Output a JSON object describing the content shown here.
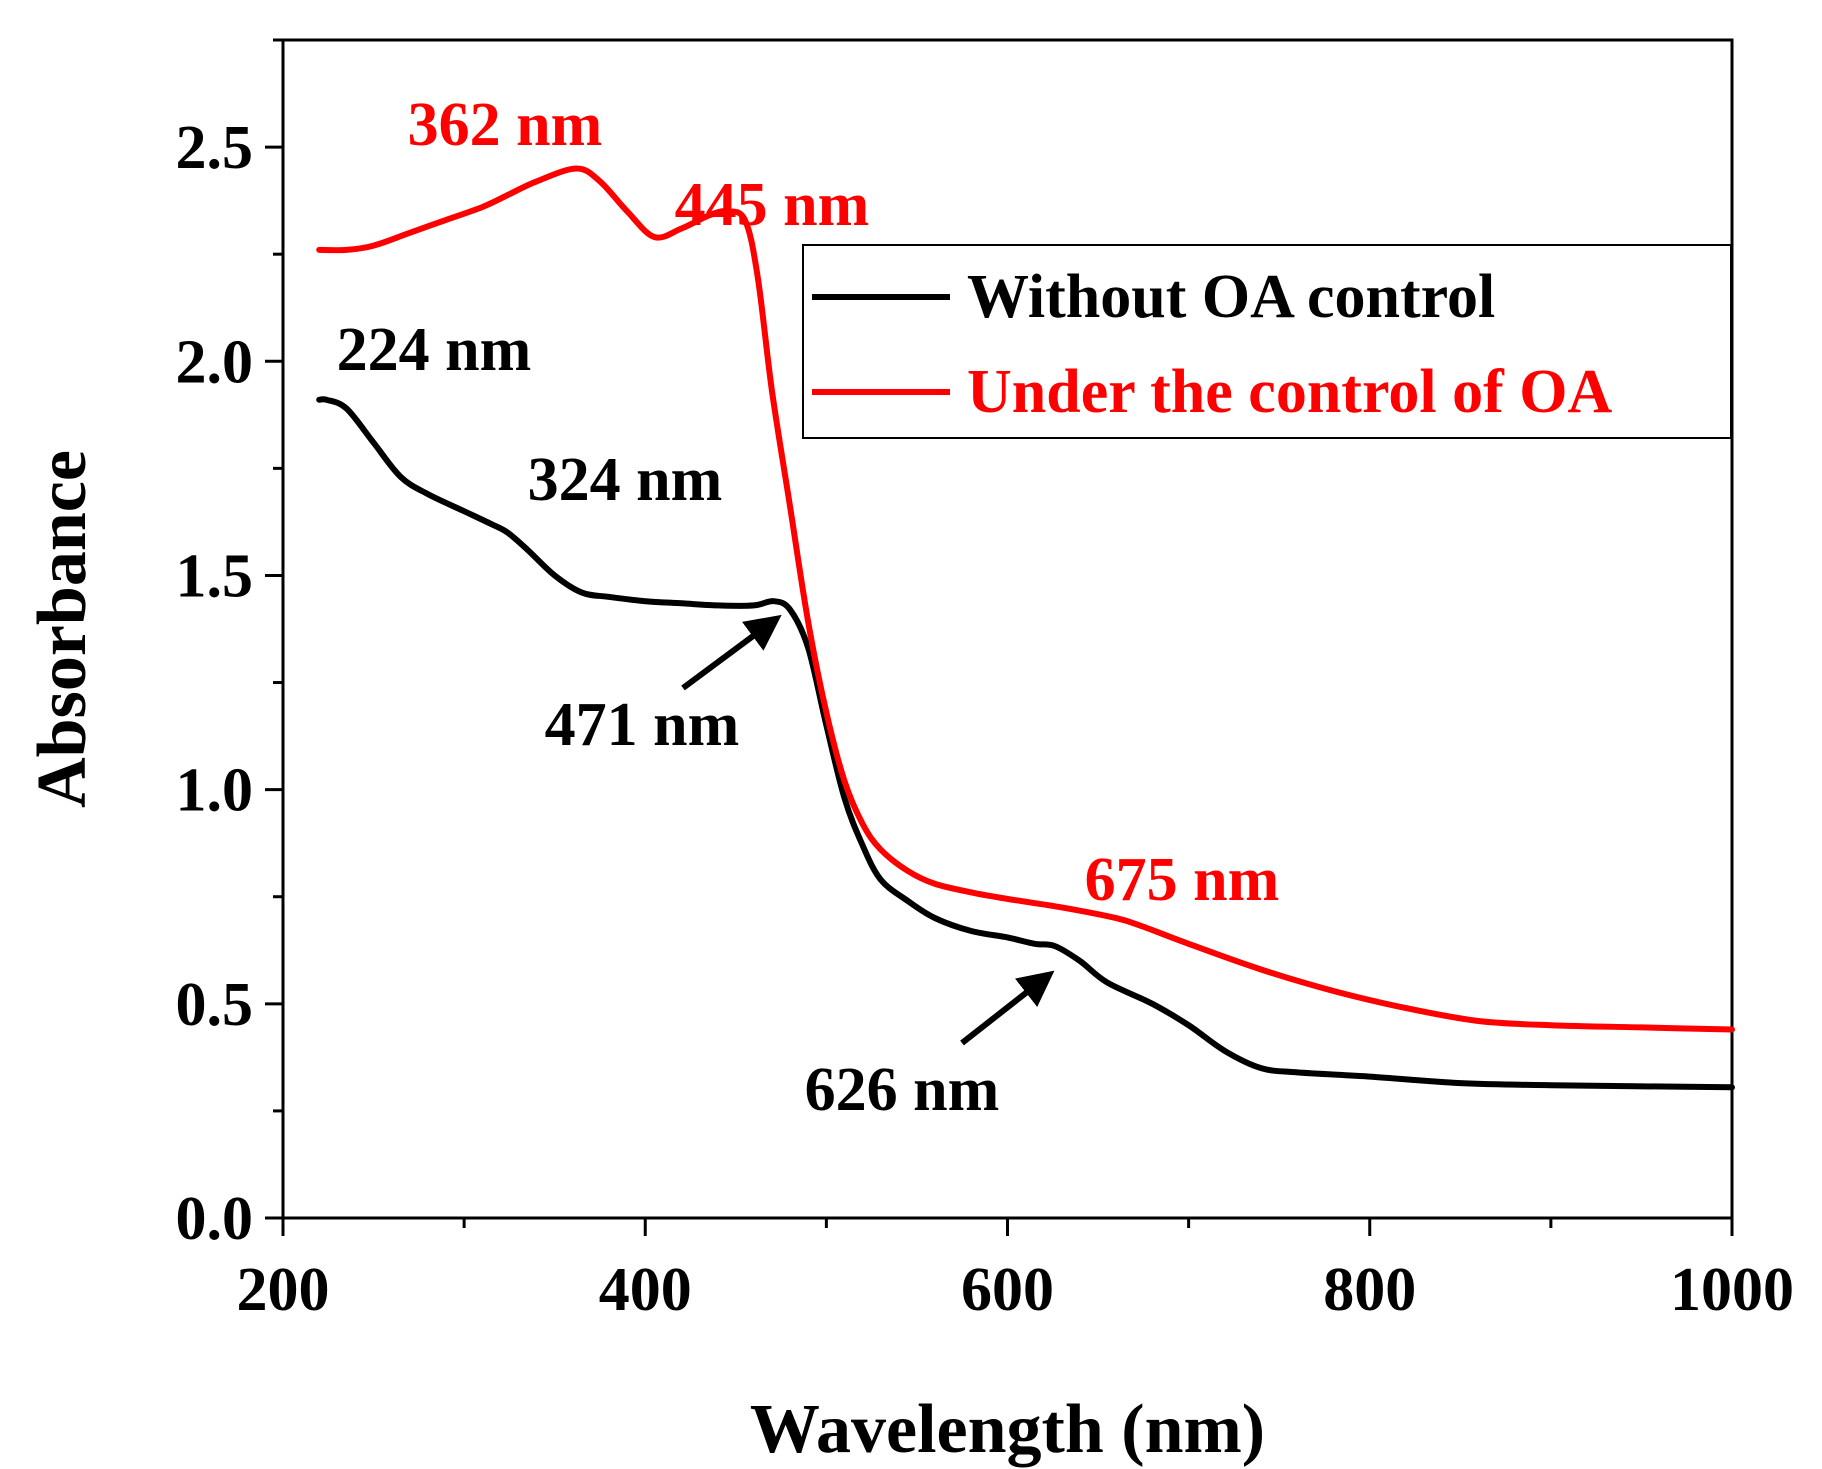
{
  "chart_data": {
    "type": "line",
    "xlabel": "Wavelength (nm)",
    "ylabel": "Absorbance",
    "xlim": [
      200,
      1000
    ],
    "ylim": [
      0,
      2.75
    ],
    "x_ticks": [
      200,
      400,
      600,
      800,
      1000
    ],
    "x_tick_labels": [
      "200",
      "400",
      "600",
      "800",
      "1000"
    ],
    "y_ticks": [
      0,
      0.5,
      1.0,
      1.5,
      2.0,
      2.5
    ],
    "y_tick_labels": [
      "0.0",
      "0.5",
      "1.0",
      "1.5",
      "2.0",
      "2.5"
    ],
    "legend_position": "top-right",
    "grid": false,
    "series": [
      {
        "name": "Without OA control",
        "color": "#000000",
        "x": [
          220,
          224,
          235,
          250,
          265,
          280,
          300,
          315,
          324,
          335,
          350,
          365,
          380,
          400,
          420,
          440,
          460,
          471,
          480,
          490,
          500,
          510,
          520,
          530,
          545,
          560,
          580,
          600,
          615,
          626,
          640,
          655,
          680,
          700,
          720,
          740,
          760,
          800,
          850,
          900,
          1000
        ],
        "y": [
          1.91,
          1.91,
          1.89,
          1.81,
          1.73,
          1.69,
          1.65,
          1.62,
          1.6,
          1.56,
          1.5,
          1.46,
          1.45,
          1.44,
          1.435,
          1.43,
          1.43,
          1.44,
          1.42,
          1.33,
          1.15,
          0.98,
          0.87,
          0.79,
          0.74,
          0.7,
          0.67,
          0.655,
          0.64,
          0.635,
          0.6,
          0.55,
          0.5,
          0.45,
          0.39,
          0.35,
          0.34,
          0.33,
          0.315,
          0.31,
          0.305
        ]
      },
      {
        "name": "Under the control of OA",
        "color": "#ff0000",
        "x": [
          220,
          235,
          250,
          270,
          290,
          310,
          325,
          340,
          362,
          375,
          390,
          405,
          420,
          435,
          445,
          455,
          462,
          470,
          480,
          490,
          500,
          510,
          520,
          530,
          545,
          560,
          580,
          600,
          630,
          660,
          675,
          700,
          740,
          780,
          820,
          860,
          900,
          950,
          1000
        ],
        "y": [
          2.26,
          2.26,
          2.27,
          2.3,
          2.33,
          2.36,
          2.39,
          2.42,
          2.45,
          2.42,
          2.35,
          2.29,
          2.31,
          2.34,
          2.35,
          2.33,
          2.2,
          1.93,
          1.66,
          1.39,
          1.18,
          1.02,
          0.92,
          0.86,
          0.81,
          0.78,
          0.76,
          0.745,
          0.725,
          0.7,
          0.68,
          0.64,
          0.58,
          0.53,
          0.49,
          0.46,
          0.45,
          0.445,
          0.44
        ]
      }
    ],
    "annotations": [
      {
        "text": "362 nm",
        "color": "#ff0000",
        "x": 362
      },
      {
        "text": "445 nm",
        "color": "#ff0000",
        "x": 445
      },
      {
        "text": "675 nm",
        "color": "#ff0000",
        "x": 675
      },
      {
        "text": "224 nm",
        "color": "#000000",
        "x": 224
      },
      {
        "text": "324 nm",
        "color": "#000000",
        "x": 324
      },
      {
        "text": "471 nm",
        "color": "#000000",
        "x": 471
      },
      {
        "text": "626 nm",
        "color": "#000000",
        "x": 626
      }
    ]
  }
}
